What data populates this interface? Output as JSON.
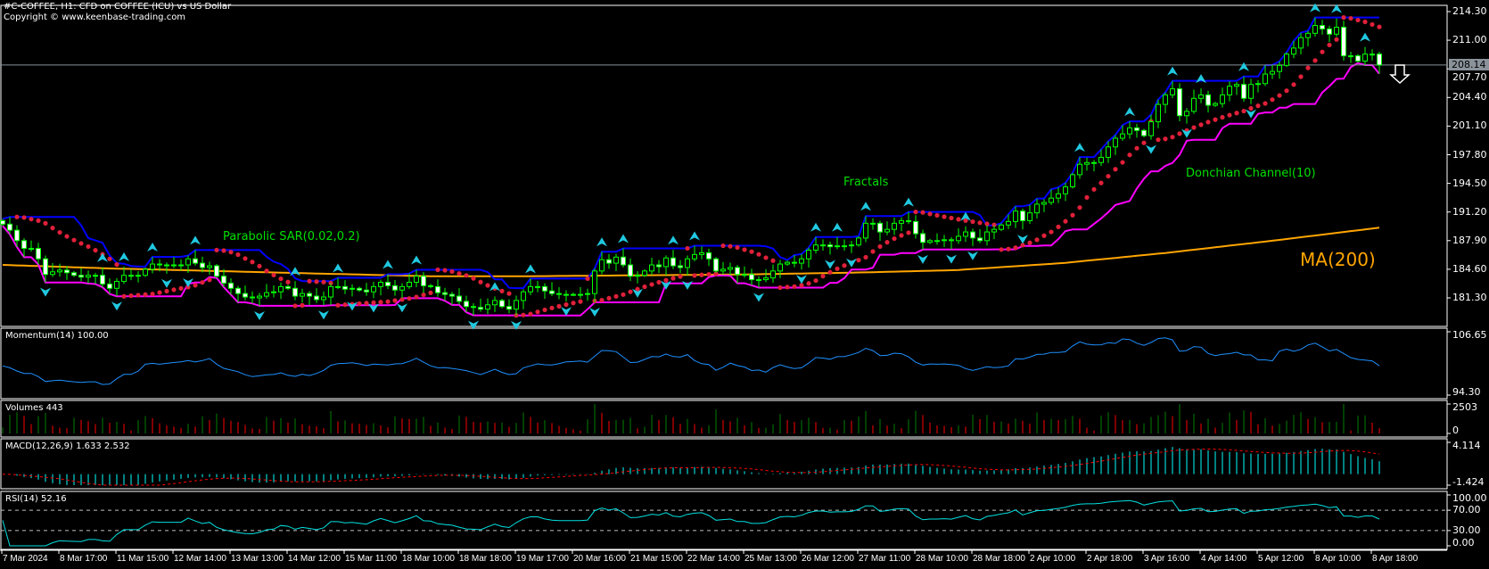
{
  "header": {
    "title": "#C-COFFEE, H1:  CFD on COFFEE (ICU) vs US Dollar",
    "copyright": "Copyright © www.keenbase-trading.com"
  },
  "annotations": {
    "parabolic_sar": "Parabolic SAR(0.02,0.2)",
    "fractals": "Fractals",
    "donchian": "Donchian Channel(10)",
    "ma": "MA(200)"
  },
  "signal": {
    "direction": "down",
    "icon": "down-arrow-icon"
  },
  "colors": {
    "background": "#000000",
    "bull_candle": "#00ff00",
    "bear_candle": "#ffffff",
    "donchian_upper": "#0000ff",
    "donchian_lower": "#ff00ff",
    "sar": "#e0203a",
    "ma200": "#ffa500",
    "fractal": "#20c8e0",
    "momentum": "#1e90ff",
    "volume_up": "#008000",
    "volume_down": "#ff0000",
    "macd": "#00ffff",
    "macd_signal": "#ff0000",
    "rsi": "#00e0e0"
  },
  "chart_data": {
    "type": "candlestick",
    "symbol": "#C-COFFEE",
    "timeframe": "H1",
    "price_axis": {
      "ticks": [
        "214.30",
        "211.00",
        "207.70",
        "204.40",
        "201.10",
        "197.80",
        "194.50",
        "191.20",
        "187.90",
        "184.60",
        "181.30"
      ],
      "range": [
        178.0,
        214.3
      ]
    },
    "current_price": "208.14",
    "time_labels": [
      "7 Mar 2024",
      "8 Mar 17:00",
      "11 Mar 15:00",
      "12 Mar 14:00",
      "13 Mar 13:00",
      "14 Mar 12:00",
      "15 Mar 11:00",
      "18 Mar 10:00",
      "18 Mar 18:00",
      "19 Mar 17:00",
      "20 Mar 16:00",
      "21 Mar 15:00",
      "22 Mar 14:00",
      "25 Mar 13:00",
      "26 Mar 12:00",
      "27 Mar 11:00",
      "28 Mar 10:00",
      "28 Mar 18:00",
      "2 Apr 10:00",
      "2 Apr 18:00",
      "3 Apr 16:00",
      "4 Apr 14:00",
      "5 Apr 12:00",
      "8 Apr 10:00",
      "8 Apr 18:00"
    ],
    "closes": [
      189.8,
      189.1,
      187.9,
      187.0,
      187.0,
      185.8,
      184.0,
      184.3,
      184.5,
      184.2,
      183.9,
      183.7,
      183.9,
      183.9,
      182.9,
      182.4,
      183.2,
      183.9,
      183.9,
      183.9,
      184.6,
      185.2,
      185.1,
      185.1,
      185.1,
      185.1,
      185.8,
      185.3,
      184.8,
      185.0,
      183.8,
      183.0,
      182.4,
      181.8,
      181.4,
      181.3,
      181.5,
      181.9,
      182.0,
      182.6,
      182.4,
      181.5,
      181.8,
      181.5,
      181.1,
      181.4,
      182.6,
      182.6,
      182.3,
      182.4,
      182.2,
      182.0,
      182.6,
      183.1,
      182.7,
      182.2,
      182.6,
      183.1,
      183.8,
      182.7,
      182.6,
      181.9,
      181.7,
      181.5,
      180.9,
      180.3,
      180.2,
      180.0,
      180.5,
      181.0,
      180.3,
      180.0,
      181.0,
      182.0,
      182.6,
      182.6,
      182.1,
      181.8,
      181.7,
      181.7,
      181.7,
      181.7,
      181.8,
      184.4,
      185.7,
      185.3,
      186.0,
      185.1,
      183.8,
      183.9,
      184.4,
      185.1,
      184.9,
      185.9,
      185.0,
      184.8,
      185.8,
      186.3,
      186.5,
      185.8,
      184.4,
      184.6,
      184.8,
      184.0,
      184.0,
      183.4,
      183.4,
      183.6,
      184.4,
      185.2,
      185.4,
      185.3,
      185.8,
      186.8,
      187.4,
      187.4,
      187.2,
      187.3,
      187.3,
      187.4,
      188.2,
      189.9,
      189.9,
      188.9,
      189.2,
      189.9,
      190.2,
      190.1,
      188.7,
      187.7,
      187.9,
      187.9,
      188.0,
      187.9,
      188.4,
      188.9,
      188.2,
      187.9,
      188.9,
      189.2,
      189.7,
      190.1,
      191.3,
      190.2,
      191.1,
      192.1,
      192.3,
      192.8,
      193.3,
      194.1,
      195.5,
      196.7,
      196.9,
      196.9,
      197.5,
      198.7,
      199.7,
      200.2,
      200.9,
      200.6,
      200.0,
      201.6,
      203.6,
      204.7,
      205.4,
      202.3,
      202.8,
      204.3,
      204.7,
      203.5,
      203.7,
      204.7,
      205.7,
      205.9,
      204.3,
      205.9,
      206.0,
      207.1,
      207.4,
      208.1,
      209.4,
      210.1,
      211.3,
      211.8,
      212.7,
      212.3,
      211.7,
      212.5,
      209.2,
      209.2,
      208.6,
      209.4,
      209.4,
      208.14
    ],
    "ma200_samples": [
      185.1,
      184.7,
      184.4,
      184.1,
      183.8,
      183.8,
      183.9,
      184.0,
      184.2,
      184.5,
      185.3,
      186.5,
      187.9,
      189.4
    ],
    "indicators": {
      "momentum": {
        "label": "Momentum(14) 100.00",
        "axis": [
          "106.65",
          "94.30"
        ],
        "range": [
          94.3,
          106.65
        ]
      },
      "volumes": {
        "label": "Volumes 443",
        "axis": [
          "2503",
          "0"
        ],
        "range": [
          0,
          2503
        ],
        "last": 443
      },
      "macd": {
        "label": "MACD(12,26,9) 1.633 2.532",
        "axis": [
          "4.114",
          "-1.424"
        ],
        "range": [
          -1.424,
          4.114
        ]
      },
      "rsi": {
        "label": "RSI(14) 52.16",
        "axis": [
          "100.00",
          "70.00",
          "30.00",
          "0.00"
        ],
        "levels": [
          70,
          30
        ],
        "range": [
          0,
          100
        ]
      }
    }
  }
}
